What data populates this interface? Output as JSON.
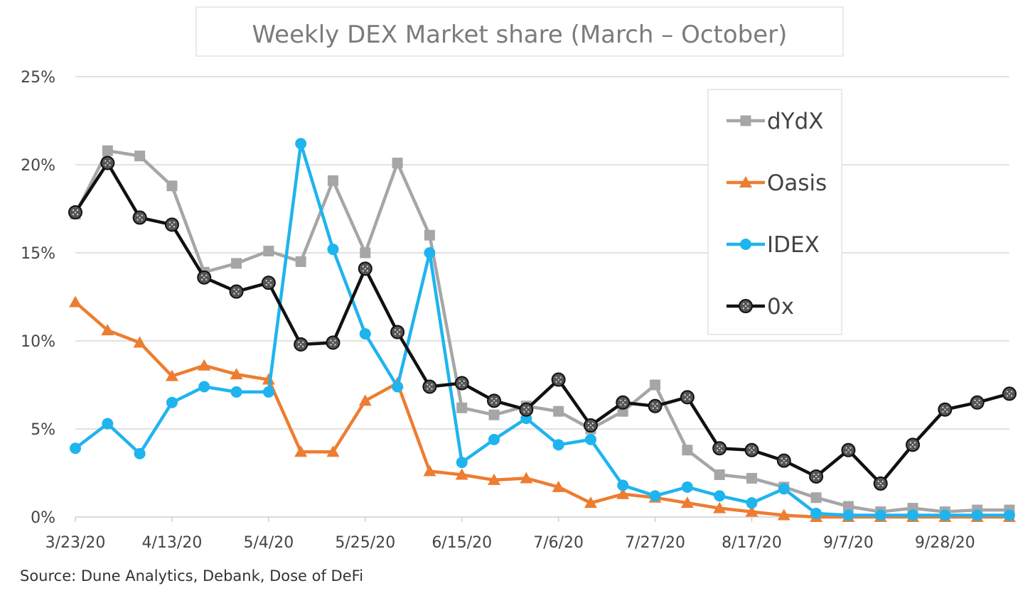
{
  "chart_data": {
    "type": "line",
    "title": "Weekly DEX Market share (March – October)",
    "source": "Source: Dune Analytics, Debank, Dose of DeFi",
    "x": [
      "3/23/20",
      "3/30/20",
      "4/6/20",
      "4/13/20",
      "4/20/20",
      "4/27/20",
      "5/4/20",
      "5/11/20",
      "5/18/20",
      "5/25/20",
      "6/1/20",
      "6/8/20",
      "6/15/20",
      "6/22/20",
      "6/29/20",
      "7/6/20",
      "7/13/20",
      "7/20/20",
      "7/27/20",
      "8/3/20",
      "8/10/20",
      "8/17/20",
      "8/24/20",
      "8/31/20",
      "9/7/20",
      "9/14/20",
      "9/21/20",
      "9/28/20",
      "10/5/20",
      "10/12/20"
    ],
    "x_tick_labels": [
      "3/23/20",
      "4/13/20",
      "5/4/20",
      "5/25/20",
      "6/15/20",
      "7/6/20",
      "7/27/20",
      "8/17/20",
      "9/7/20",
      "9/28/20"
    ],
    "y_tick_labels": [
      "0%",
      "5%",
      "10%",
      "15%",
      "20%",
      "25%"
    ],
    "ylim": [
      0,
      25
    ],
    "grid": "horizontal",
    "legend_position": "top-right",
    "series": [
      {
        "name": "dYdX",
        "marker": "square",
        "color": "#a6a6a6",
        "values": [
          17.2,
          20.8,
          20.5,
          18.8,
          13.9,
          14.4,
          15.1,
          14.5,
          19.1,
          15.0,
          20.1,
          16.0,
          6.2,
          5.8,
          6.3,
          6.0,
          5.0,
          6.0,
          7.5,
          3.8,
          2.4,
          2.2,
          1.7,
          1.1,
          0.6,
          0.3,
          0.5,
          0.3,
          0.4,
          0.4
        ]
      },
      {
        "name": "Oasis",
        "marker": "triangle",
        "color": "#ed7d31",
        "values": [
          12.2,
          10.6,
          9.9,
          8.0,
          8.6,
          8.1,
          7.8,
          3.7,
          3.7,
          6.6,
          7.6,
          2.6,
          2.4,
          2.1,
          2.2,
          1.7,
          0.8,
          1.3,
          1.1,
          0.8,
          0.5,
          0.3,
          0.1,
          0.0,
          0.0,
          0.0,
          0.0,
          0.0,
          0.0,
          0.0
        ]
      },
      {
        "name": "IDEX",
        "marker": "circle",
        "color": "#1fb4ee",
        "values": [
          3.9,
          5.3,
          3.6,
          6.5,
          7.4,
          7.1,
          7.1,
          21.2,
          15.2,
          10.4,
          7.4,
          15.0,
          3.1,
          4.4,
          5.6,
          4.1,
          4.4,
          1.8,
          1.2,
          1.7,
          1.2,
          0.8,
          1.6,
          0.2,
          0.1,
          0.1,
          0.1,
          0.1,
          0.1,
          0.1
        ]
      },
      {
        "name": "0x",
        "marker": "dotted-circle",
        "color": "#111111",
        "values": [
          17.3,
          20.1,
          17.0,
          16.6,
          13.6,
          12.8,
          13.3,
          9.8,
          9.9,
          14.1,
          10.5,
          7.4,
          7.6,
          6.6,
          6.1,
          7.8,
          5.2,
          6.5,
          6.3,
          6.8,
          3.9,
          3.8,
          3.2,
          2.3,
          3.8,
          1.9,
          4.1,
          6.1,
          6.5,
          7.0
        ]
      }
    ]
  }
}
